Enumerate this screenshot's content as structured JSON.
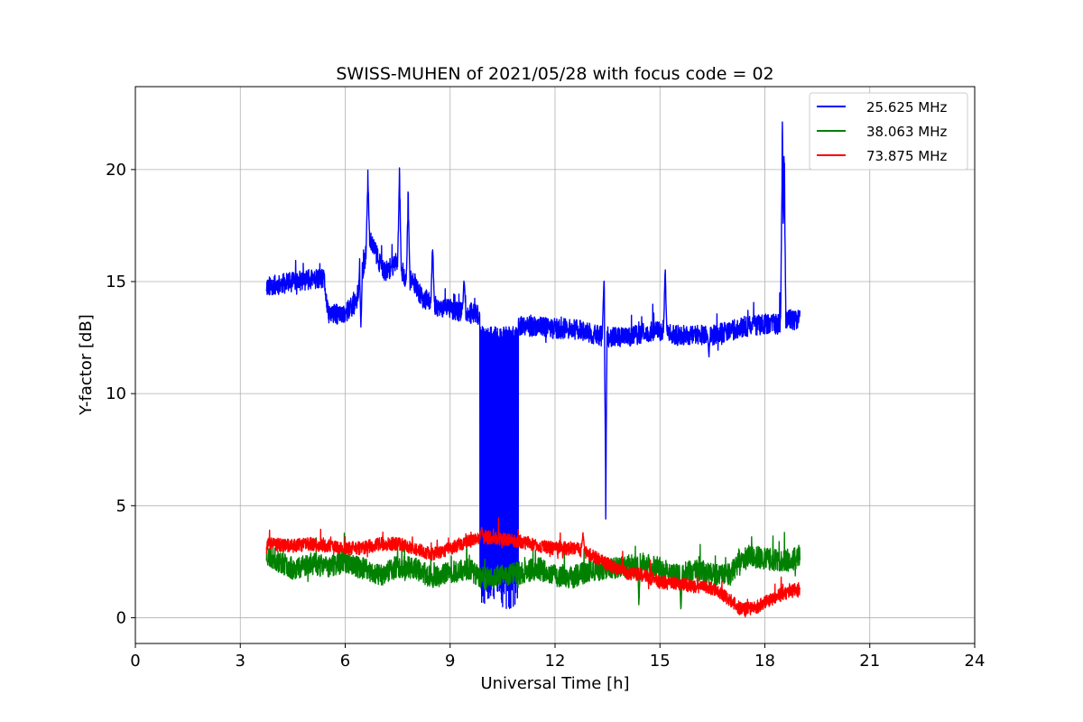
{
  "chart_data": {
    "type": "line",
    "title": "SWISS-MUHEN of 2021/05/28 with focus code = 02",
    "xlabel": "Universal Time [h]",
    "ylabel": "Y-factor [dB]",
    "xlim": [
      0,
      24
    ],
    "ylim": [
      -1.15,
      23.7
    ],
    "xticks": [
      0,
      3,
      6,
      9,
      12,
      15,
      18,
      21,
      24
    ],
    "yticks": [
      0,
      5,
      10,
      15,
      20
    ],
    "grid": true,
    "legend_position": "top-right",
    "series": [
      {
        "name": "25.625 MHz",
        "color": "#0000ff",
        "noise": 0.45,
        "points": [
          [
            3.75,
            14.8
          ],
          [
            4.2,
            14.9
          ],
          [
            4.6,
            15.0
          ],
          [
            5.0,
            15.1
          ],
          [
            5.4,
            15.1
          ],
          [
            5.5,
            13.6
          ],
          [
            5.9,
            13.5
          ],
          [
            6.3,
            14.0
          ],
          [
            6.5,
            15.5
          ],
          [
            6.7,
            17.0
          ],
          [
            6.9,
            16.2
          ],
          [
            7.1,
            15.4
          ],
          [
            7.3,
            15.6
          ],
          [
            7.5,
            16.0
          ],
          [
            7.7,
            15.2
          ],
          [
            7.9,
            15.0
          ],
          [
            8.2,
            14.3
          ],
          [
            8.6,
            13.9
          ],
          [
            9.2,
            13.7
          ],
          [
            9.8,
            13.5
          ],
          [
            10.5,
            13.3
          ],
          [
            11.0,
            13.0
          ],
          [
            11.5,
            13.0
          ],
          [
            12.0,
            12.9
          ],
          [
            12.5,
            12.9
          ],
          [
            13.0,
            12.7
          ],
          [
            13.5,
            12.5
          ],
          [
            14.0,
            12.5
          ],
          [
            14.5,
            12.7
          ],
          [
            15.0,
            12.8
          ],
          [
            15.5,
            12.6
          ],
          [
            16.0,
            12.6
          ],
          [
            16.5,
            12.6
          ],
          [
            17.0,
            12.8
          ],
          [
            17.5,
            13.0
          ],
          [
            18.0,
            13.1
          ],
          [
            18.4,
            13.1
          ],
          [
            18.6,
            13.3
          ],
          [
            19.0,
            13.3
          ]
        ],
        "spikes": [
          [
            6.45,
            19.2
          ],
          [
            6.65,
            20.2
          ],
          [
            7.55,
            20.5
          ],
          [
            7.8,
            19.3
          ],
          [
            8.5,
            17.0
          ],
          [
            9.4,
            15.3
          ],
          [
            13.4,
            15.5
          ],
          [
            15.15,
            15.8
          ],
          [
            18.5,
            22.6
          ],
          [
            18.55,
            22.4
          ]
        ],
        "dips": [
          [
            6.45,
            12.6
          ],
          [
            9.95,
            0.3
          ],
          [
            10.3,
            0.6
          ],
          [
            10.7,
            0.0
          ],
          [
            13.45,
            3.6
          ],
          [
            16.4,
            11.5
          ]
        ],
        "bands": [
          [
            9.85,
            10.95,
            0.4,
            13.0
          ]
        ],
        "seed": 11
      },
      {
        "name": "38.063 MHz",
        "color": "#008000",
        "noise": 0.5,
        "points": [
          [
            3.75,
            2.8
          ],
          [
            4.5,
            2.2
          ],
          [
            5.0,
            2.4
          ],
          [
            5.5,
            2.3
          ],
          [
            6.0,
            2.5
          ],
          [
            6.5,
            2.2
          ],
          [
            7.0,
            1.9
          ],
          [
            7.5,
            2.3
          ],
          [
            8.0,
            2.2
          ],
          [
            8.5,
            1.8
          ],
          [
            9.0,
            2.0
          ],
          [
            9.5,
            2.2
          ],
          [
            10.0,
            1.7
          ],
          [
            10.5,
            1.9
          ],
          [
            11.0,
            2.0
          ],
          [
            11.5,
            2.2
          ],
          [
            12.0,
            1.9
          ],
          [
            12.5,
            1.8
          ],
          [
            13.0,
            2.1
          ],
          [
            13.5,
            2.2
          ],
          [
            14.0,
            2.3
          ],
          [
            14.5,
            2.4
          ],
          [
            15.0,
            2.2
          ],
          [
            15.5,
            1.9
          ],
          [
            16.0,
            2.1
          ],
          [
            16.5,
            1.9
          ],
          [
            17.0,
            1.9
          ],
          [
            17.3,
            2.6
          ],
          [
            17.8,
            2.7
          ],
          [
            18.5,
            2.5
          ],
          [
            19.0,
            2.7
          ]
        ],
        "spikes": [],
        "dips": [
          [
            14.4,
            0.3
          ],
          [
            15.6,
            0.0
          ]
        ],
        "bands": [],
        "seed": 23
      },
      {
        "name": "73.875 MHz",
        "color": "#ff0000",
        "noise": 0.3,
        "points": [
          [
            3.75,
            3.3
          ],
          [
            4.5,
            3.2
          ],
          [
            5.0,
            3.3
          ],
          [
            5.5,
            3.2
          ],
          [
            6.0,
            3.1
          ],
          [
            6.5,
            3.1
          ],
          [
            7.0,
            3.3
          ],
          [
            7.5,
            3.3
          ],
          [
            8.0,
            3.1
          ],
          [
            8.5,
            2.8
          ],
          [
            9.0,
            3.1
          ],
          [
            9.5,
            3.4
          ],
          [
            10.0,
            3.6
          ],
          [
            10.5,
            3.5
          ],
          [
            11.0,
            3.4
          ],
          [
            11.5,
            3.2
          ],
          [
            12.0,
            3.1
          ],
          [
            12.5,
            3.1
          ],
          [
            12.8,
            3.0
          ],
          [
            13.0,
            2.8
          ],
          [
            13.5,
            2.4
          ],
          [
            14.0,
            2.0
          ],
          [
            14.5,
            1.9
          ],
          [
            15.0,
            1.6
          ],
          [
            15.5,
            1.5
          ],
          [
            16.0,
            1.4
          ],
          [
            16.5,
            1.3
          ],
          [
            17.0,
            0.8
          ],
          [
            17.3,
            0.4
          ],
          [
            17.7,
            0.4
          ],
          [
            18.0,
            0.7
          ],
          [
            18.4,
            1.0
          ],
          [
            19.0,
            1.3
          ]
        ],
        "spikes": [
          [
            12.8,
            3.9
          ],
          [
            9.9,
            4.1
          ]
        ],
        "dips": [],
        "bands": [],
        "seed": 37
      }
    ]
  }
}
